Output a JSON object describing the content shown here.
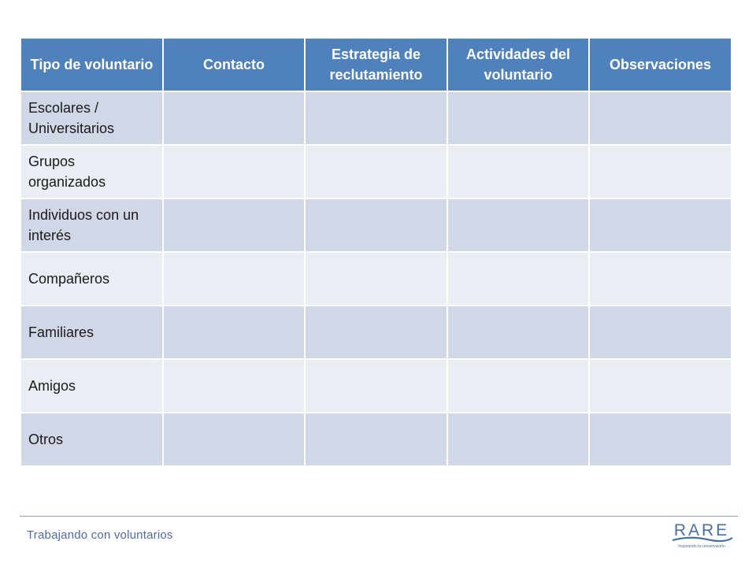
{
  "table": {
    "headers": [
      "Tipo de voluntario",
      "Contacto",
      "Estrategia de reclutamiento",
      "Actividades del voluntario",
      "Observaciones"
    ],
    "rows": [
      "Escolares / Universitarios",
      "Grupos organizados",
      "Individuos con un interés",
      "Compañeros",
      "Familiares",
      "Amigos",
      "Otros"
    ]
  },
  "footer": {
    "title": "Trabajando con voluntarios"
  },
  "logo": {
    "name": "RARE",
    "tagline": "Inspirando la conservación",
    "color": "#4a6fa5"
  }
}
